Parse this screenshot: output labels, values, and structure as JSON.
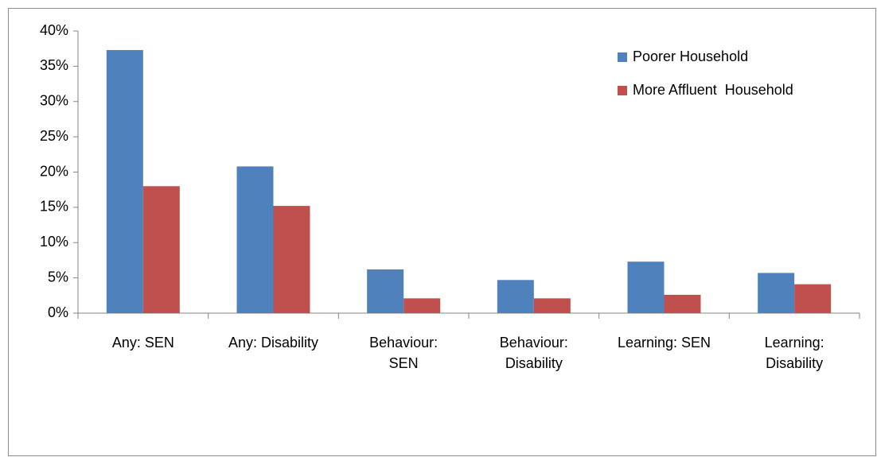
{
  "chart_data": {
    "type": "bar",
    "categories": [
      "Any: SEN",
      "Any: Disability",
      "Behaviour:\nSEN",
      "Behaviour:\nDisability",
      "Learning: SEN",
      "Learning:\nDisability"
    ],
    "series": [
      {
        "name": "Poorer Household",
        "color": "#4f81bd",
        "values": [
          37.3,
          20.8,
          6.2,
          4.7,
          7.3,
          5.7
        ]
      },
      {
        "name": "More Affluent  Household",
        "color": "#c0504d",
        "values": [
          18.0,
          15.2,
          2.1,
          2.1,
          2.6,
          4.1
        ]
      }
    ],
    "ylim": [
      0,
      40
    ],
    "yticks": [
      {
        "value": 0,
        "label": "0%"
      },
      {
        "value": 5,
        "label": "5%"
      },
      {
        "value": 10,
        "label": "10%"
      },
      {
        "value": 15,
        "label": "15%"
      },
      {
        "value": 20,
        "label": "20%"
      },
      {
        "value": 25,
        "label": "25%"
      },
      {
        "value": 30,
        "label": "30%"
      },
      {
        "value": 35,
        "label": "35%"
      },
      {
        "value": 40,
        "label": "40%"
      }
    ],
    "grid": false,
    "legend": "top-right"
  }
}
